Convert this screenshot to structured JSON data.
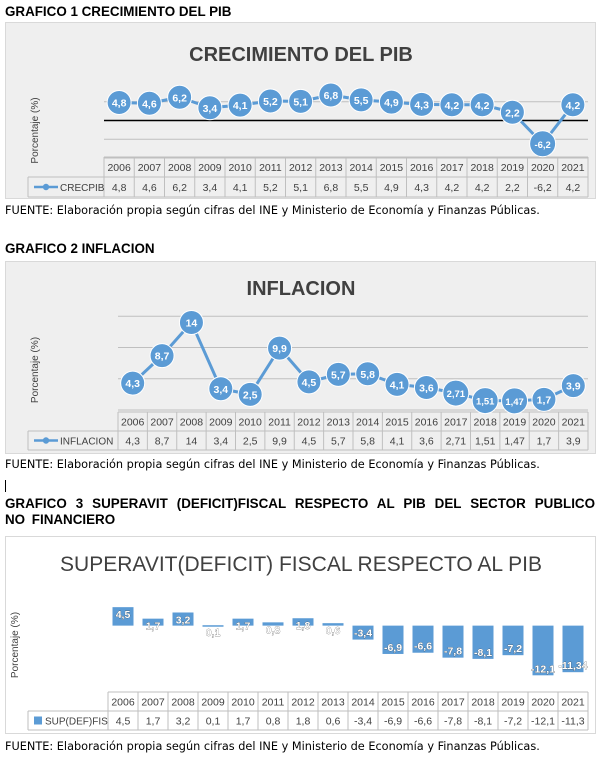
{
  "headings": [
    "GRAFICO 1 CRECIMIENTO DEL PIB",
    "GRAFICO 2 INFLACION",
    "GRAFICO 3 SUPERAVIT (DEFICIT)FISCAL RESPECTO AL PIB DEL SECTOR PUBLICO NO FINANCIERO"
  ],
  "sources": [
    "FUENTE: Elaboración propia según cifras del INE y Ministerio de Economía y Finanzas Públicas.",
    " FUENTE: Elaboración propia según cifras del INE y Ministerio de Economía y Finanzas Públicas.",
    "FUENTE: Elaboración propia según cifras del INE y Ministerio de Economía y Finanzas Públicas."
  ],
  "colors": {
    "series": "#5b9bd5",
    "marker_fill": "#5b9bd5",
    "marker_text": "#ffffff",
    "title": "#404040",
    "axis_text": "#404040",
    "gridline": "#bfbfbf",
    "zero_line": "#000000",
    "chart_bg": "#efefef"
  },
  "chart_data": [
    {
      "type": "line",
      "title": "CRECIMIENTO DEL PIB",
      "ylabel": "Porcentaje (%)",
      "categories": [
        "2006",
        "2007",
        "2008",
        "2009",
        "2010",
        "2011",
        "2012",
        "2013",
        "2014",
        "2015",
        "2016",
        "2017",
        "2018",
        "2019",
        "2020",
        "2021"
      ],
      "series": [
        {
          "name": "CRECPIB",
          "values": [
            4.8,
            4.6,
            6.2,
            3.4,
            4.1,
            5.2,
            5.1,
            6.8,
            5.5,
            4.9,
            4.3,
            4.2,
            4.2,
            2.2,
            -6.2,
            4.2
          ],
          "labels": [
            "4,8",
            "4,6",
            "6,2",
            "3,4",
            "4,1",
            "5,2",
            "5,1",
            "6,8",
            "5,5",
            "4,9",
            "4,3",
            "4,2",
            "4,2",
            "2,2",
            "-6,2",
            "4,2"
          ],
          "table": [
            "4,8",
            "4,6",
            "6,2",
            "3,4",
            "4,1",
            "5,2",
            "5,1",
            "6,8",
            "5,5",
            "4,9",
            "4,3",
            "4,2",
            "4,2",
            "2,2",
            "-6,2",
            "4,2"
          ]
        }
      ],
      "ylim": [
        -10,
        10
      ],
      "gridlines": [
        -10,
        -5,
        0,
        5
      ],
      "zero_line": true,
      "legend": "data table below plot"
    },
    {
      "type": "line",
      "title": "INFLACION",
      "ylabel": "Porcentaje (%)",
      "categories": [
        "2006",
        "2007",
        "2008",
        "2009",
        "2010",
        "2011",
        "2012",
        "2013",
        "2014",
        "2015",
        "2016",
        "2017",
        "2018",
        "2019",
        "2020",
        "2021"
      ],
      "series": [
        {
          "name": "INFLACION",
          "values": [
            4.3,
            8.7,
            14,
            3.4,
            2.5,
            9.9,
            4.5,
            5.7,
            5.8,
            4.1,
            3.6,
            2.71,
            1.51,
            1.47,
            1.7,
            3.9
          ],
          "labels": [
            "4,3",
            "8,7",
            "14",
            "3,4",
            "2,5",
            "9,9",
            "4,5",
            "5,7",
            "5,8",
            "4,1",
            "3,6",
            "2,71",
            "1,51",
            "1,47",
            "1,7",
            "3,9"
          ],
          "table": [
            "4,3",
            "8,7",
            "14",
            "3,4",
            "2,5",
            "9,9",
            "4,5",
            "5,7",
            "5,8",
            "4,1",
            "3,6",
            "2,71",
            "1,51",
            "1,47",
            "1,7",
            "3,9"
          ]
        }
      ],
      "ylim": [
        0,
        16
      ],
      "gridlines": [
        0,
        5,
        10,
        15
      ],
      "legend": "data table below plot"
    },
    {
      "type": "bar",
      "title": "SUPERAVIT(DEFICIT) FISCAL RESPECTO AL PIB",
      "ylabel": "Porcentaje (%)",
      "categories": [
        "2006",
        "2007",
        "2008",
        "2009",
        "2010",
        "2011",
        "2012",
        "2013",
        "2014",
        "2015",
        "2016",
        "2017",
        "2018",
        "2019",
        "2020",
        "2021"
      ],
      "series": [
        {
          "name": "SUP(DEF)FIS",
          "values": [
            4.5,
            1.7,
            3.2,
            0.1,
            1.7,
            0.8,
            1.8,
            0.6,
            -3.4,
            -6.9,
            -6.6,
            -7.8,
            -8.1,
            -7.2,
            -12.1,
            -11.34
          ],
          "labels": [
            "4,5",
            "1,7",
            "3,2",
            "0,1",
            "1,7",
            "0,8",
            "1,8",
            "0,6",
            "-3,4",
            "-6,9",
            "-6,6",
            "-7,8",
            "-8,1",
            "-7,2",
            "-12,1",
            "-11,34"
          ],
          "table": [
            "4,5",
            "1,7",
            "3,2",
            "0,1",
            "1,7",
            "0,8",
            "1,8",
            "0,6",
            "-3,4",
            "-6,9",
            "-6,6",
            "-7,8",
            "-8,1",
            "-7,2",
            "-12,1",
            "-11,3"
          ]
        }
      ],
      "ylim": [
        -13,
        6
      ],
      "legend": "data table below plot"
    }
  ]
}
